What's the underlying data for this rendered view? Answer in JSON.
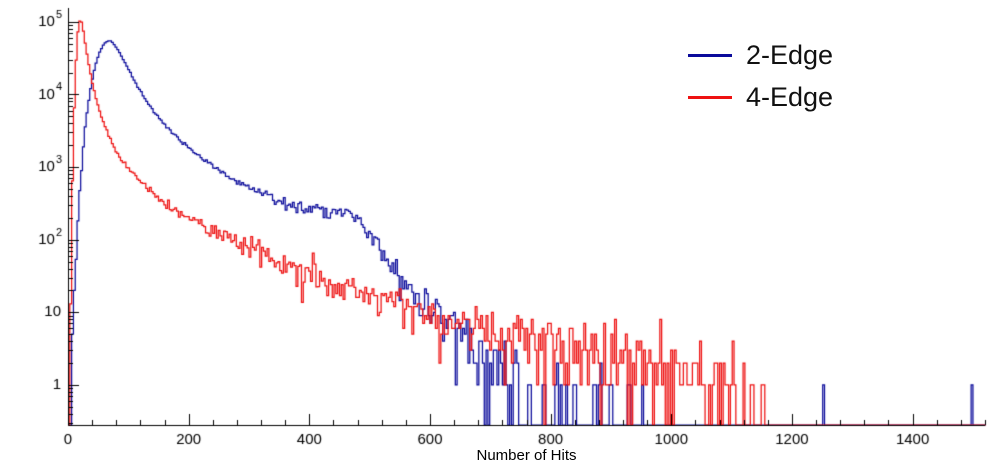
{
  "page": {
    "background": "#ffffff",
    "axis_color": "#000000",
    "text_color": "#000000"
  },
  "legend": {
    "items": [
      {
        "label": "2-Edge",
        "color": "#0b0b9b"
      },
      {
        "label": "4-Edge",
        "color": "#ee1111"
      }
    ]
  },
  "chart_data": {
    "type": "line",
    "title": "",
    "xlabel": "Number of Hits",
    "ylabel": "",
    "ylog": true,
    "xlim": [
      0,
      1520
    ],
    "ylim": [
      0.28,
      155000
    ],
    "grid": false,
    "legend_position": "top-right",
    "x_ticks": [
      {
        "v": 0,
        "t": "0"
      },
      {
        "v": 200,
        "t": "200"
      },
      {
        "v": 400,
        "t": "400"
      },
      {
        "v": 600,
        "t": "600"
      },
      {
        "v": 800,
        "t": "800"
      },
      {
        "v": 1000,
        "t": "1000"
      },
      {
        "v": 1200,
        "t": "1200"
      },
      {
        "v": 1400,
        "t": "1400"
      }
    ],
    "x_minor_step": 40,
    "y_ticks": [
      {
        "v": 1,
        "t": "1"
      },
      {
        "v": 10,
        "t": "10"
      },
      {
        "v": 100,
        "t": "10",
        "e": "2"
      },
      {
        "v": 1000,
        "t": "10",
        "e": "3"
      },
      {
        "v": 10000,
        "t": "10",
        "e": "4"
      },
      {
        "v": 100000,
        "t": "10",
        "e": "5"
      }
    ],
    "bin_width": 3,
    "seed": 1337,
    "noise": 1.5,
    "series": [
      {
        "name": "2-Edge",
        "color": "#0b0b9b",
        "anchors": [
          [
            3,
            0.5
          ],
          [
            6,
            2
          ],
          [
            10,
            15
          ],
          [
            14,
            80
          ],
          [
            18,
            300
          ],
          [
            22,
            900
          ],
          [
            26,
            2200
          ],
          [
            30,
            4500
          ],
          [
            34,
            8000
          ],
          [
            38,
            13000
          ],
          [
            42,
            19000
          ],
          [
            46,
            26000
          ],
          [
            50,
            33500
          ],
          [
            54,
            40500
          ],
          [
            58,
            47000
          ],
          [
            62,
            52000
          ],
          [
            66,
            55000
          ],
          [
            70,
            54500
          ],
          [
            74,
            51500
          ],
          [
            78,
            47000
          ],
          [
            84,
            39500
          ],
          [
            90,
            32000
          ],
          [
            96,
            26000
          ],
          [
            102,
            21000
          ],
          [
            110,
            15500
          ],
          [
            118,
            11800
          ],
          [
            126,
            9200
          ],
          [
            134,
            7300
          ],
          [
            142,
            5900
          ],
          [
            150,
            4900
          ],
          [
            160,
            3900
          ],
          [
            170,
            3150
          ],
          [
            180,
            2600
          ],
          [
            190,
            2200
          ],
          [
            200,
            1850
          ],
          [
            215,
            1450
          ],
          [
            230,
            1170
          ],
          [
            245,
            960
          ],
          [
            260,
            800
          ],
          [
            275,
            680
          ],
          [
            290,
            580
          ],
          [
            305,
            500
          ],
          [
            320,
            440
          ],
          [
            335,
            390
          ],
          [
            350,
            350
          ],
          [
            365,
            320
          ],
          [
            380,
            295
          ],
          [
            395,
            278
          ],
          [
            410,
            265
          ],
          [
            425,
            258
          ],
          [
            440,
            250
          ],
          [
            452,
            240
          ],
          [
            462,
            225
          ],
          [
            472,
            205
          ],
          [
            482,
            175
          ],
          [
            492,
            142
          ],
          [
            502,
            112
          ],
          [
            512,
            86
          ],
          [
            522,
            65
          ],
          [
            532,
            50
          ],
          [
            545,
            36
          ],
          [
            558,
            26
          ],
          [
            572,
            19
          ],
          [
            586,
            14
          ],
          [
            600,
            10.5
          ],
          [
            620,
            7.6
          ],
          [
            640,
            5.6
          ],
          [
            660,
            4.2
          ],
          [
            680,
            3.1
          ],
          [
            700,
            2.4
          ],
          [
            725,
            1.7
          ],
          [
            750,
            1.25
          ],
          [
            775,
            0.95
          ],
          [
            800,
            0.75
          ],
          [
            830,
            0.55
          ],
          [
            860,
            0.42
          ],
          [
            890,
            0.32
          ],
          [
            920,
            0.22
          ],
          [
            950,
            0.12
          ],
          [
            960,
            0.03
          ]
        ],
        "extra_spikes": [
          [
            930,
            1
          ],
          [
            1252,
            1
          ],
          [
            1497,
            1
          ]
        ]
      },
      {
        "name": "4-Edge",
        "color": "#ee1111",
        "anchors": [
          [
            3,
            0.6
          ],
          [
            5,
            30
          ],
          [
            7,
            400
          ],
          [
            9,
            2500
          ],
          [
            11,
            9000
          ],
          [
            13,
            25000
          ],
          [
            15,
            52000
          ],
          [
            17,
            82000
          ],
          [
            19,
            102000
          ],
          [
            21,
            106000
          ],
          [
            23,
            97000
          ],
          [
            25,
            80000
          ],
          [
            27,
            62000
          ],
          [
            29,
            47000
          ],
          [
            31,
            38000
          ],
          [
            34,
            27000
          ],
          [
            37,
            20000
          ],
          [
            40,
            15000
          ],
          [
            44,
            10800
          ],
          [
            48,
            7800
          ],
          [
            52,
            6000
          ],
          [
            57,
            4500
          ],
          [
            62,
            3500
          ],
          [
            68,
            2650
          ],
          [
            74,
            2100
          ],
          [
            80,
            1700
          ],
          [
            88,
            1320
          ],
          [
            96,
            1060
          ],
          [
            104,
            880
          ],
          [
            112,
            740
          ],
          [
            122,
            605
          ],
          [
            132,
            505
          ],
          [
            144,
            415
          ],
          [
            156,
            348
          ],
          [
            168,
            296
          ],
          [
            180,
            256
          ],
          [
            195,
            213
          ],
          [
            210,
            181
          ],
          [
            225,
            156
          ],
          [
            240,
            134
          ],
          [
            255,
            117
          ],
          [
            270,
            102
          ],
          [
            285,
            89
          ],
          [
            300,
            78
          ],
          [
            320,
            66
          ],
          [
            340,
            56
          ],
          [
            360,
            48
          ],
          [
            380,
            41
          ],
          [
            400,
            36
          ],
          [
            420,
            31
          ],
          [
            440,
            27
          ],
          [
            460,
            24
          ],
          [
            480,
            21
          ],
          [
            500,
            18.5
          ],
          [
            520,
            16.5
          ],
          [
            540,
            14.5
          ],
          [
            560,
            13
          ],
          [
            580,
            11.5
          ],
          [
            600,
            10
          ],
          [
            630,
            8.6
          ],
          [
            660,
            7.4
          ],
          [
            690,
            6.4
          ],
          [
            720,
            5.6
          ],
          [
            750,
            4.9
          ],
          [
            780,
            4.3
          ],
          [
            810,
            3.9
          ],
          [
            840,
            3.6
          ],
          [
            870,
            3.3
          ],
          [
            900,
            3.0
          ],
          [
            930,
            2.7
          ],
          [
            960,
            2.4
          ],
          [
            990,
            2.1
          ],
          [
            1020,
            1.9
          ],
          [
            1050,
            1.7
          ],
          [
            1080,
            1.4
          ],
          [
            1110,
            1.1
          ],
          [
            1135,
            0.8
          ],
          [
            1148,
            0.4
          ],
          [
            1155,
            0.05
          ]
        ],
        "extra_spikes": []
      }
    ]
  }
}
